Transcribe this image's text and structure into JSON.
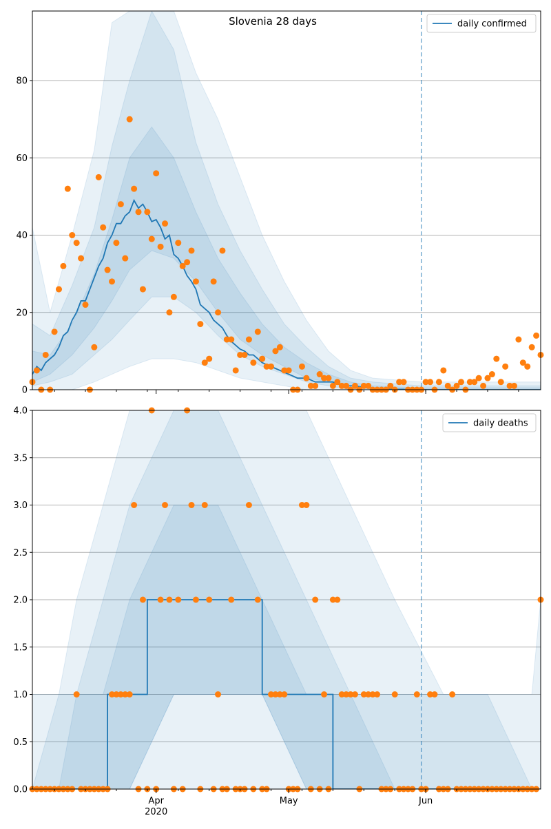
{
  "chart_data": [
    {
      "type": "line",
      "title": "Slovenia 28 days",
      "xlabel": "",
      "ylabel": "",
      "xlim": [
        "2020-03-04",
        "2020-06-27"
      ],
      "ylim": [
        0,
        98
      ],
      "yticks": [
        0,
        20,
        40,
        60,
        80
      ],
      "xticks": [
        {
          "date": "2020-04-01",
          "label": "Apr",
          "sublabel": "2020"
        },
        {
          "date": "2020-05-01",
          "label": "May"
        },
        {
          "date": "2020-06-01",
          "label": "Jun"
        }
      ],
      "grid": "y",
      "legend": "top-right",
      "vline_date": "2020-05-31",
      "colors": {
        "line": "#1f77b4",
        "points": "#ff7f0e",
        "band": "#c6dbef"
      },
      "series": [
        {
          "name": "daily confirmed",
          "kind": "line",
          "x_start": "2020-03-04",
          "values": [
            4,
            6,
            5,
            7,
            8,
            9,
            11,
            14,
            15,
            18,
            20,
            23,
            23,
            26,
            29,
            32,
            34,
            38,
            40,
            43,
            43,
            45,
            46,
            49,
            47,
            48,
            46,
            43.5,
            44,
            42,
            39,
            40,
            35,
            34,
            32,
            29.5,
            28,
            26,
            22,
            21,
            20,
            18,
            17,
            16,
            14,
            12.5,
            11.5,
            10.5,
            10,
            9,
            9,
            8,
            7,
            6.5,
            6,
            5.5,
            5,
            4.5,
            4,
            3.5,
            3,
            3,
            3,
            2.5,
            2,
            2,
            2,
            2,
            2,
            1.5,
            1.2,
            1,
            1,
            1,
            0.8,
            0.6,
            0.5,
            0.4,
            0.3,
            0.2,
            0.2,
            0.1,
            0.1,
            0.1,
            0.1,
            0,
            0,
            0,
            0,
            0,
            0,
            0,
            0,
            0,
            0,
            0,
            0,
            0,
            0,
            0,
            0,
            0,
            0,
            0,
            0,
            0,
            0,
            0,
            0,
            0,
            0,
            0,
            0,
            0,
            0,
            0
          ]
        },
        {
          "name": "observed",
          "kind": "points",
          "x_start": "2020-03-04",
          "values": [
            2,
            5,
            0,
            9,
            0,
            15,
            26,
            32,
            52,
            40,
            38,
            34,
            22,
            0,
            11,
            55,
            42,
            31,
            28,
            38,
            48,
            34,
            70,
            52,
            46,
            26,
            46,
            39,
            56,
            37,
            43,
            20,
            24,
            38,
            32,
            33,
            36,
            28,
            17,
            7,
            8,
            28,
            20,
            36,
            13,
            13,
            5,
            9,
            9,
            13,
            7,
            15,
            8,
            6,
            6,
            10,
            11,
            5,
            5,
            0,
            0,
            6,
            3,
            1,
            1,
            4,
            3,
            3,
            1,
            2,
            1,
            1,
            0,
            1,
            0,
            1,
            1,
            0,
            0,
            0,
            0,
            1,
            0,
            2,
            2,
            0,
            0,
            0,
            0,
            2,
            2,
            0,
            2,
            5,
            1,
            0,
            1,
            2,
            0,
            2,
            2,
            3,
            1,
            3,
            4,
            8,
            2,
            6,
            1,
            1,
            13,
            7,
            6,
            11,
            14,
            9
          ]
        }
      ],
      "bands": [
        {
          "name": "outer",
          "x": [
            "2020-03-04",
            "2020-03-08",
            "2020-03-13",
            "2020-03-18",
            "2020-03-22",
            "2020-03-26",
            "2020-03-31",
            "2020-04-05",
            "2020-04-10",
            "2020-04-15",
            "2020-04-20",
            "2020-04-25",
            "2020-04-30",
            "2020-05-05",
            "2020-05-10",
            "2020-05-15",
            "2020-05-20",
            "2020-05-31",
            "2020-06-27"
          ],
          "lo": [
            0,
            0,
            0,
            2,
            4,
            6,
            8,
            8,
            7,
            5,
            3,
            2,
            1,
            0,
            0,
            0,
            0,
            0,
            0
          ],
          "hi": [
            42,
            20,
            40,
            62,
            95,
            98,
            98,
            98,
            82,
            70,
            55,
            40,
            28,
            18,
            10,
            5,
            3,
            2,
            2
          ]
        },
        {
          "name": "mid",
          "x": [
            "2020-03-04",
            "2020-03-08",
            "2020-03-13",
            "2020-03-18",
            "2020-03-22",
            "2020-03-26",
            "2020-03-31",
            "2020-04-05",
            "2020-04-10",
            "2020-04-15",
            "2020-04-20",
            "2020-04-25",
            "2020-04-30",
            "2020-05-05",
            "2020-05-10",
            "2020-05-15",
            "2020-05-20",
            "2020-05-31",
            "2020-06-27"
          ],
          "lo": [
            1,
            2,
            4,
            9,
            13,
            18,
            24,
            24,
            20,
            14,
            9,
            6,
            4,
            2,
            1,
            0,
            0,
            0,
            0
          ],
          "hi": [
            17,
            14,
            27,
            42,
            63,
            80,
            98,
            88,
            64,
            48,
            36,
            26,
            17,
            11,
            6,
            3,
            2,
            1,
            1
          ]
        },
        {
          "name": "inner",
          "x": [
            "2020-03-04",
            "2020-03-08",
            "2020-03-13",
            "2020-03-18",
            "2020-03-22",
            "2020-03-26",
            "2020-03-31",
            "2020-04-05",
            "2020-04-10",
            "2020-04-15",
            "2020-04-20",
            "2020-04-25",
            "2020-04-30",
            "2020-05-05",
            "2020-05-10",
            "2020-05-15",
            "2020-05-20",
            "2020-05-31",
            "2020-06-27"
          ],
          "lo": [
            2,
            4,
            9,
            16,
            23,
            31,
            36,
            34,
            28,
            20,
            13,
            9,
            6,
            3,
            2,
            1,
            0,
            0,
            0
          ],
          "hi": [
            10,
            9,
            17,
            30,
            44,
            60,
            68,
            60,
            46,
            34,
            25,
            17,
            11,
            7,
            4,
            2,
            1,
            0.5,
            0.5
          ]
        }
      ]
    },
    {
      "type": "line",
      "title": "",
      "xlabel": "",
      "ylabel": "",
      "xlim": [
        "2020-03-04",
        "2020-06-27"
      ],
      "ylim": [
        0,
        4
      ],
      "yticks": [
        0.0,
        0.5,
        1.0,
        1.5,
        2.0,
        2.5,
        3.0,
        3.5,
        4.0
      ],
      "ytick_labels": [
        "0.0",
        "0.5",
        "1.0",
        "1.5",
        "2.0",
        "2.5",
        "3.0",
        "3.5",
        "4.0"
      ],
      "xticks": [
        {
          "date": "2020-04-01",
          "label": "Apr",
          "sublabel": "2020"
        },
        {
          "date": "2020-05-01",
          "label": "May"
        },
        {
          "date": "2020-06-01",
          "label": "Jun"
        }
      ],
      "grid": "y",
      "legend": "top-right",
      "vline_date": "2020-05-31",
      "colors": {
        "line": "#1f77b4",
        "points": "#ff7f0e",
        "band": "#c6dbef"
      },
      "series": [
        {
          "name": "daily deaths",
          "kind": "step",
          "points": [
            [
              "2020-03-04",
              0
            ],
            [
              "2020-03-21",
              0
            ],
            [
              "2020-03-21",
              1
            ],
            [
              "2020-03-30",
              1
            ],
            [
              "2020-03-30",
              2
            ],
            [
              "2020-04-25",
              2
            ],
            [
              "2020-04-25",
              1
            ],
            [
              "2020-05-11",
              1
            ],
            [
              "2020-05-11",
              0
            ],
            [
              "2020-06-27",
              0
            ]
          ]
        },
        {
          "name": "observed",
          "kind": "points",
          "x_start": "2020-03-04",
          "values": [
            0,
            0,
            0,
            0,
            0,
            0,
            0,
            0,
            0,
            0,
            1,
            0,
            0,
            0,
            0,
            0,
            0,
            0,
            1,
            1,
            1,
            1,
            1,
            3,
            0,
            2,
            0,
            4,
            0,
            2,
            3,
            2,
            0,
            2,
            0,
            4,
            3,
            2,
            0,
            3,
            2,
            0,
            1,
            0,
            0,
            2,
            0,
            0,
            0,
            3,
            0,
            2,
            0,
            0,
            1,
            1,
            1,
            1,
            0,
            0,
            0,
            3,
            3,
            0,
            2,
            0,
            1,
            0,
            2,
            2,
            1,
            1,
            1,
            1,
            0,
            1,
            1,
            1,
            1,
            0,
            0,
            0,
            1,
            0,
            0,
            0,
            0,
            1,
            0,
            0,
            1,
            1,
            0,
            0,
            0,
            1,
            0,
            0,
            0,
            0,
            0,
            0,
            0,
            0,
            0,
            0,
            0,
            0,
            0,
            0,
            0,
            0,
            0,
            0,
            0,
            2
          ]
        }
      ],
      "bands": [
        {
          "name": "outer",
          "x": [
            "2020-03-04",
            "2020-03-10",
            "2020-03-14",
            "2020-03-20",
            "2020-03-26",
            "2020-04-05",
            "2020-04-15",
            "2020-04-25",
            "2020-05-05",
            "2020-05-15",
            "2020-05-25",
            "2020-06-05",
            "2020-06-15",
            "2020-06-25",
            "2020-06-27"
          ],
          "lo": [
            0,
            0,
            0,
            0,
            0,
            0,
            0,
            0,
            0,
            0,
            0,
            0,
            0,
            0,
            0
          ],
          "hi": [
            1,
            1,
            2,
            3,
            4,
            4,
            4,
            4,
            4,
            3,
            2,
            1,
            1,
            1,
            2
          ]
        },
        {
          "name": "mid",
          "x": [
            "2020-03-04",
            "2020-03-10",
            "2020-03-14",
            "2020-03-20",
            "2020-03-26",
            "2020-04-05",
            "2020-04-15",
            "2020-04-25",
            "2020-05-05",
            "2020-05-15",
            "2020-05-25",
            "2020-06-05",
            "2020-06-15",
            "2020-06-25",
            "2020-06-27"
          ],
          "lo": [
            0,
            0,
            0,
            0,
            0,
            1,
            1,
            1,
            0,
            0,
            0,
            0,
            0,
            0,
            0
          ],
          "hi": [
            0,
            1,
            1,
            2,
            3,
            4,
            4,
            3,
            2,
            1,
            1,
            1,
            1,
            0,
            0
          ]
        },
        {
          "name": "inner",
          "x": [
            "2020-03-04",
            "2020-03-10",
            "2020-03-14",
            "2020-03-20",
            "2020-03-26",
            "2020-04-05",
            "2020-04-15",
            "2020-04-25",
            "2020-05-05",
            "2020-05-15",
            "2020-05-25",
            "2020-06-05",
            "2020-06-15",
            "2020-06-25",
            "2020-06-27"
          ],
          "lo": [
            0,
            0,
            0,
            0,
            0,
            1,
            1,
            1,
            0,
            0,
            0,
            0,
            0,
            0,
            0
          ],
          "hi": [
            0,
            0,
            1,
            1,
            2,
            3,
            3,
            2,
            1,
            1,
            0,
            0,
            0,
            0,
            0
          ]
        }
      ]
    }
  ]
}
